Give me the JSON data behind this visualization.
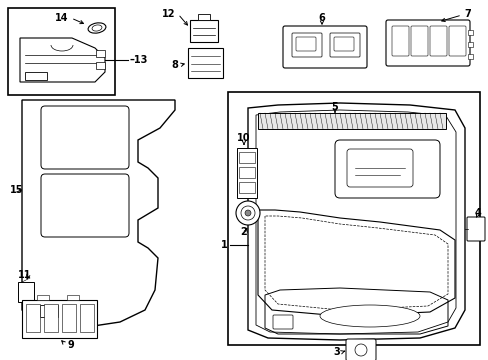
{
  "bg_color": "#ffffff",
  "lc": "#000000",
  "figsize": [
    4.89,
    3.6
  ],
  "dpi": 100
}
